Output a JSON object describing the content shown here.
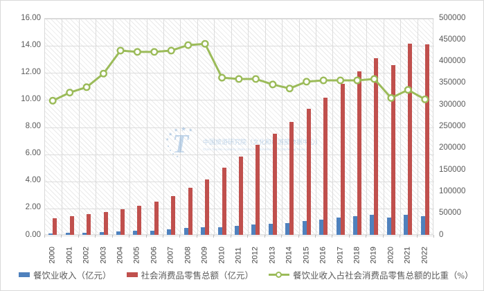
{
  "watermark": {
    "logo": "china-tourism-academy-logo",
    "line1": "中国旅游研究院（文化和旅游部数据中心）",
    "line2": "China Tourism Academy (Data Center of the Ministry of Culture and Tourism)"
  },
  "chart_data": {
    "type": "bar",
    "subtype": "grouped bars with overlaid line (combo chart)",
    "title": "",
    "xlabel": "",
    "ylabel_left": "",
    "ylabel_right": "",
    "grid": "horizontal and vertical gridlines on, hatched diagonal-stripe plot background",
    "legend_position": "bottom",
    "categories": [
      "2000",
      "2001",
      "2002",
      "2003",
      "2004",
      "2005",
      "2006",
      "2007",
      "2008",
      "2009",
      "2010",
      "2011",
      "2012",
      "2013",
      "2014",
      "2015",
      "2016",
      "2017",
      "2018",
      "2019",
      "2020",
      "2021",
      "2022"
    ],
    "series": [
      {
        "name": "餐饮业收入（亿元）",
        "type": "bar",
        "axis": "right",
        "color": "#4f81bd",
        "values": [
          3800,
          4400,
          5100,
          6100,
          7500,
          8900,
          10300,
          12400,
          15400,
          18000,
          17600,
          20500,
          23400,
          25400,
          27900,
          32300,
          35800,
          39600,
          42700,
          46700,
          39500,
          46900,
          43900
        ]
      },
      {
        "name": "社会消费品零售总额（亿元）",
        "type": "bar",
        "axis": "right",
        "color": "#c0504d",
        "values": [
          39100,
          43100,
          48100,
          52500,
          59500,
          67200,
          76400,
          89200,
          108500,
          128000,
          154600,
          181200,
          207500,
          233500,
          261000,
          290000,
          317000,
          348000,
          377500,
          408000,
          392000,
          441000,
          440000
        ]
      },
      {
        "name": "餐饮业收入占社会消费品零售总额的比重（%）",
        "type": "line",
        "axis": "left",
        "color": "#9bbb59",
        "marker": "circle, white fill, green outline",
        "values": [
          9.9,
          10.5,
          10.9,
          11.9,
          13.6,
          13.5,
          13.5,
          13.6,
          14.0,
          14.1,
          11.6,
          11.5,
          11.5,
          11.1,
          10.8,
          11.3,
          11.4,
          11.4,
          11.4,
          11.5,
          10.1,
          10.7,
          10.0
        ]
      }
    ],
    "axes": {
      "left": {
        "min": 0,
        "max": 16,
        "step": 2,
        "tick_labels": [
          "0.00",
          "2.00",
          "4.00",
          "6.00",
          "8.00",
          "10.00",
          "12.00",
          "14.00",
          "16.00"
        ]
      },
      "right": {
        "min": 0,
        "max": 500000,
        "step": 50000,
        "tick_labels": [
          "0",
          "50000",
          "100000",
          "150000",
          "200000",
          "250000",
          "300000",
          "350000",
          "400000",
          "450000",
          "500000"
        ]
      }
    }
  },
  "colors": {
    "bar_blue": "#4f81bd",
    "bar_red": "#c0504d",
    "line_green": "#9bbb59",
    "gridline": "#dcdcdc",
    "axis_text": "#595959",
    "year_text": "#404040",
    "watermark_blue": "#7da9d6",
    "chart_border": "#d9d9d9"
  }
}
